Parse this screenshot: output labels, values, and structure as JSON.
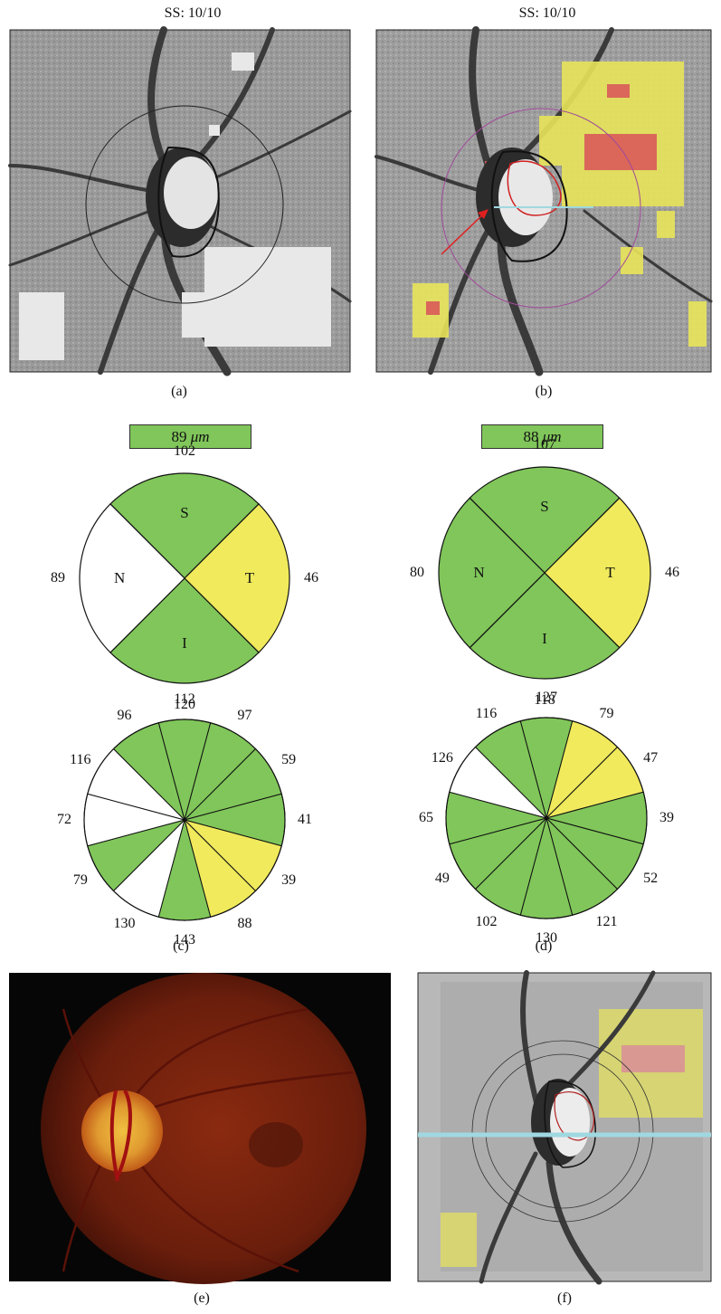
{
  "figure": {
    "panel_a": {
      "label": "(a)",
      "ss": "SS: 10/10"
    },
    "panel_b": {
      "label": "(b)",
      "ss": "SS: 10/10"
    },
    "panel_c": {
      "label": "(c)"
    },
    "panel_d": {
      "label": "(d)"
    },
    "panel_e": {
      "label": "(e)"
    },
    "panel_f": {
      "label": "(f)"
    }
  },
  "colors": {
    "green": "#80c65a",
    "yellow": "#f0ea5c",
    "white": "#ffffff",
    "outline": "#111111",
    "arrow": "#e02020",
    "scan_line": "#9fd8e0"
  },
  "chart_data": [
    {
      "type": "pie",
      "panel": "c-quadrants",
      "average": "89 μm",
      "average_value": "89",
      "average_unit": "μm",
      "segments": [
        {
          "label": "S",
          "value": 102,
          "color": "green"
        },
        {
          "label": "T",
          "value": 46,
          "color": "yellow"
        },
        {
          "label": "I",
          "value": 120,
          "color": "green"
        },
        {
          "label": "N",
          "value": 89,
          "color": "white"
        }
      ]
    },
    {
      "type": "pie",
      "panel": "d-quadrants",
      "average": "88 μm",
      "average_value": "88",
      "average_unit": "μm",
      "segments": [
        {
          "label": "S",
          "value": 107,
          "color": "green"
        },
        {
          "label": "T",
          "value": 46,
          "color": "yellow"
        },
        {
          "label": "I",
          "value": 118,
          "color": "green"
        },
        {
          "label": "N",
          "value": 80,
          "color": "green"
        }
      ]
    },
    {
      "type": "pie",
      "panel": "c-clock-hours",
      "order": "clockwise from 12 o'clock",
      "sectors": [
        {
          "value": 112,
          "color": "green"
        },
        {
          "value": 97,
          "color": "green"
        },
        {
          "value": 59,
          "color": "green"
        },
        {
          "value": 41,
          "color": "green"
        },
        {
          "value": 39,
          "color": "yellow"
        },
        {
          "value": 88,
          "color": "yellow"
        },
        {
          "value": 143,
          "color": "green"
        },
        {
          "value": 130,
          "color": "white"
        },
        {
          "value": 79,
          "color": "green"
        },
        {
          "value": 72,
          "color": "white"
        },
        {
          "value": 116,
          "color": "white"
        },
        {
          "value": 96,
          "color": "green"
        }
      ]
    },
    {
      "type": "pie",
      "panel": "d-clock-hours",
      "order": "clockwise from 12 o'clock",
      "sectors": [
        {
          "value": 127,
          "color": "green"
        },
        {
          "value": 79,
          "color": "yellow"
        },
        {
          "value": 47,
          "color": "yellow"
        },
        {
          "value": 39,
          "color": "green"
        },
        {
          "value": 52,
          "color": "green"
        },
        {
          "value": 121,
          "color": "green"
        },
        {
          "value": 130,
          "color": "green"
        },
        {
          "value": 102,
          "color": "green"
        },
        {
          "value": 49,
          "color": "green"
        },
        {
          "value": 65,
          "color": "green"
        },
        {
          "value": 126,
          "color": "white"
        },
        {
          "value": 116,
          "color": "green"
        }
      ]
    }
  ]
}
